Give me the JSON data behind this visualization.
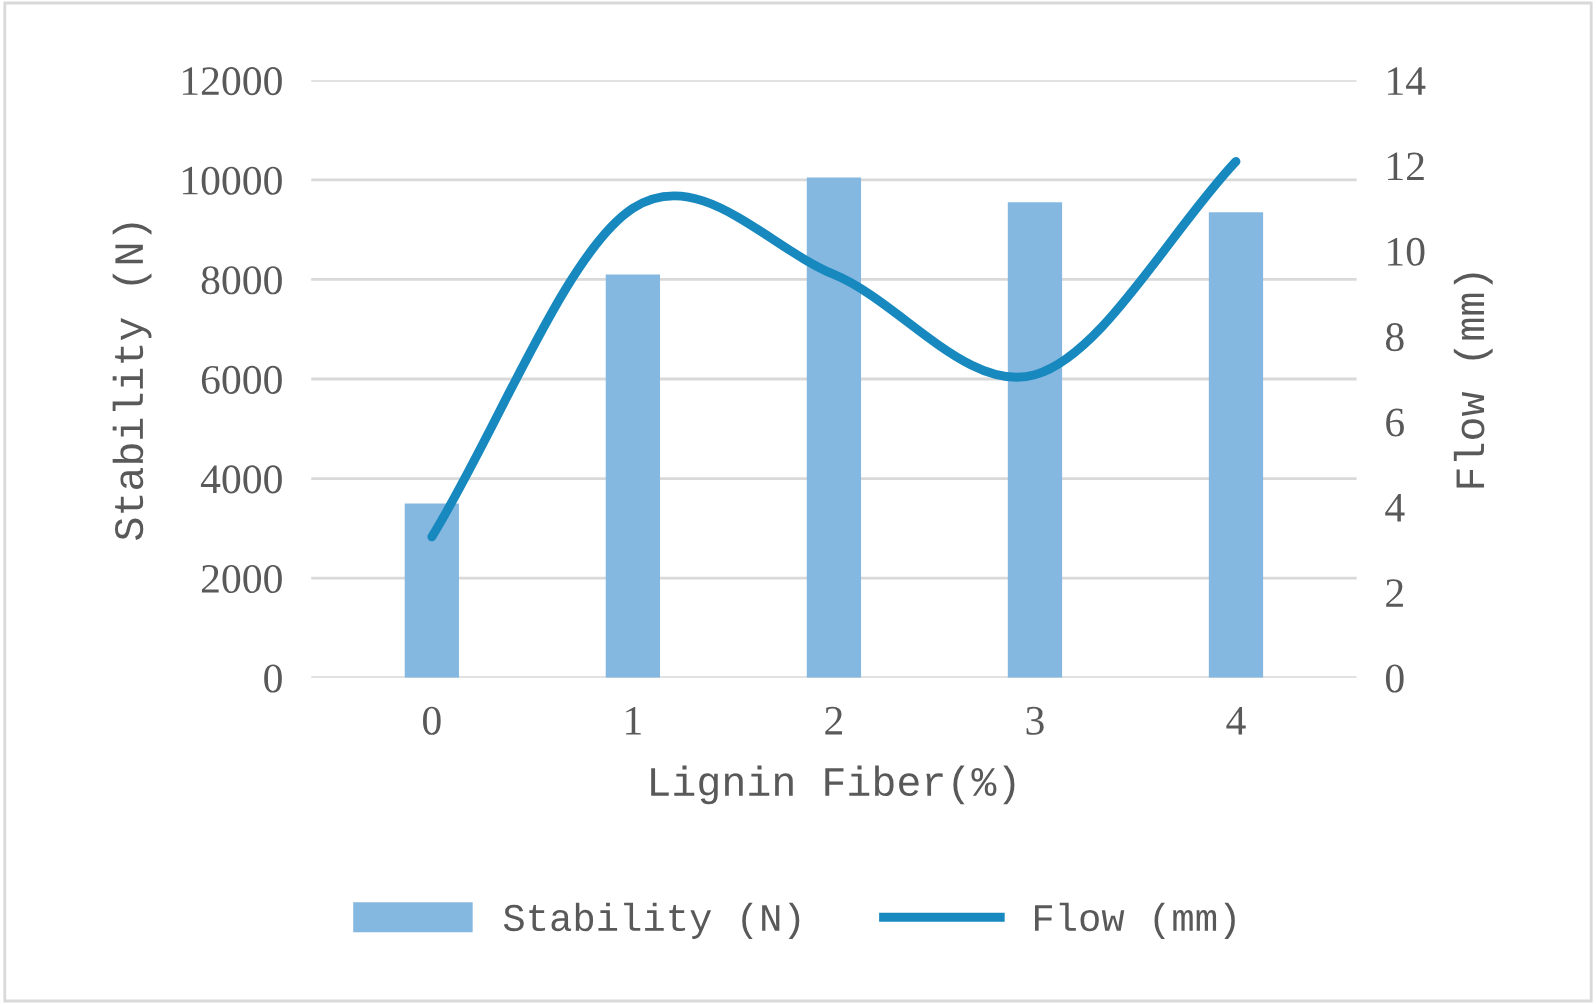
{
  "chart_data": {
    "type": "bar",
    "xlabel": "Lignin Fiber(%)",
    "ylabel": "Stability (N)",
    "y2label": "Flow (mm)",
    "categories": [
      "0",
      "1",
      "2",
      "3",
      "4"
    ],
    "series": [
      {
        "name": "Stability (N)",
        "color": "#85b8e0",
        "values": [
          3500,
          8100,
          10050,
          9550,
          9350
        ]
      },
      {
        "name": "Flow (mm)",
        "type": "line",
        "axis": "y2",
        "color": "#1789bf",
        "values": [
          3.3,
          11.0,
          9.45,
          7.1,
          12.1
        ]
      }
    ],
    "ylim": [
      0,
      12000
    ],
    "yticks": [
      0,
      2000,
      4000,
      6000,
      8000,
      10000,
      12000
    ],
    "y2lim": [
      0,
      14
    ],
    "y2ticks": [
      0,
      2,
      4,
      6,
      8,
      10,
      12,
      14
    ],
    "grid": "y",
    "legend": "bottom",
    "marker": "none",
    "line_style": "solid"
  }
}
